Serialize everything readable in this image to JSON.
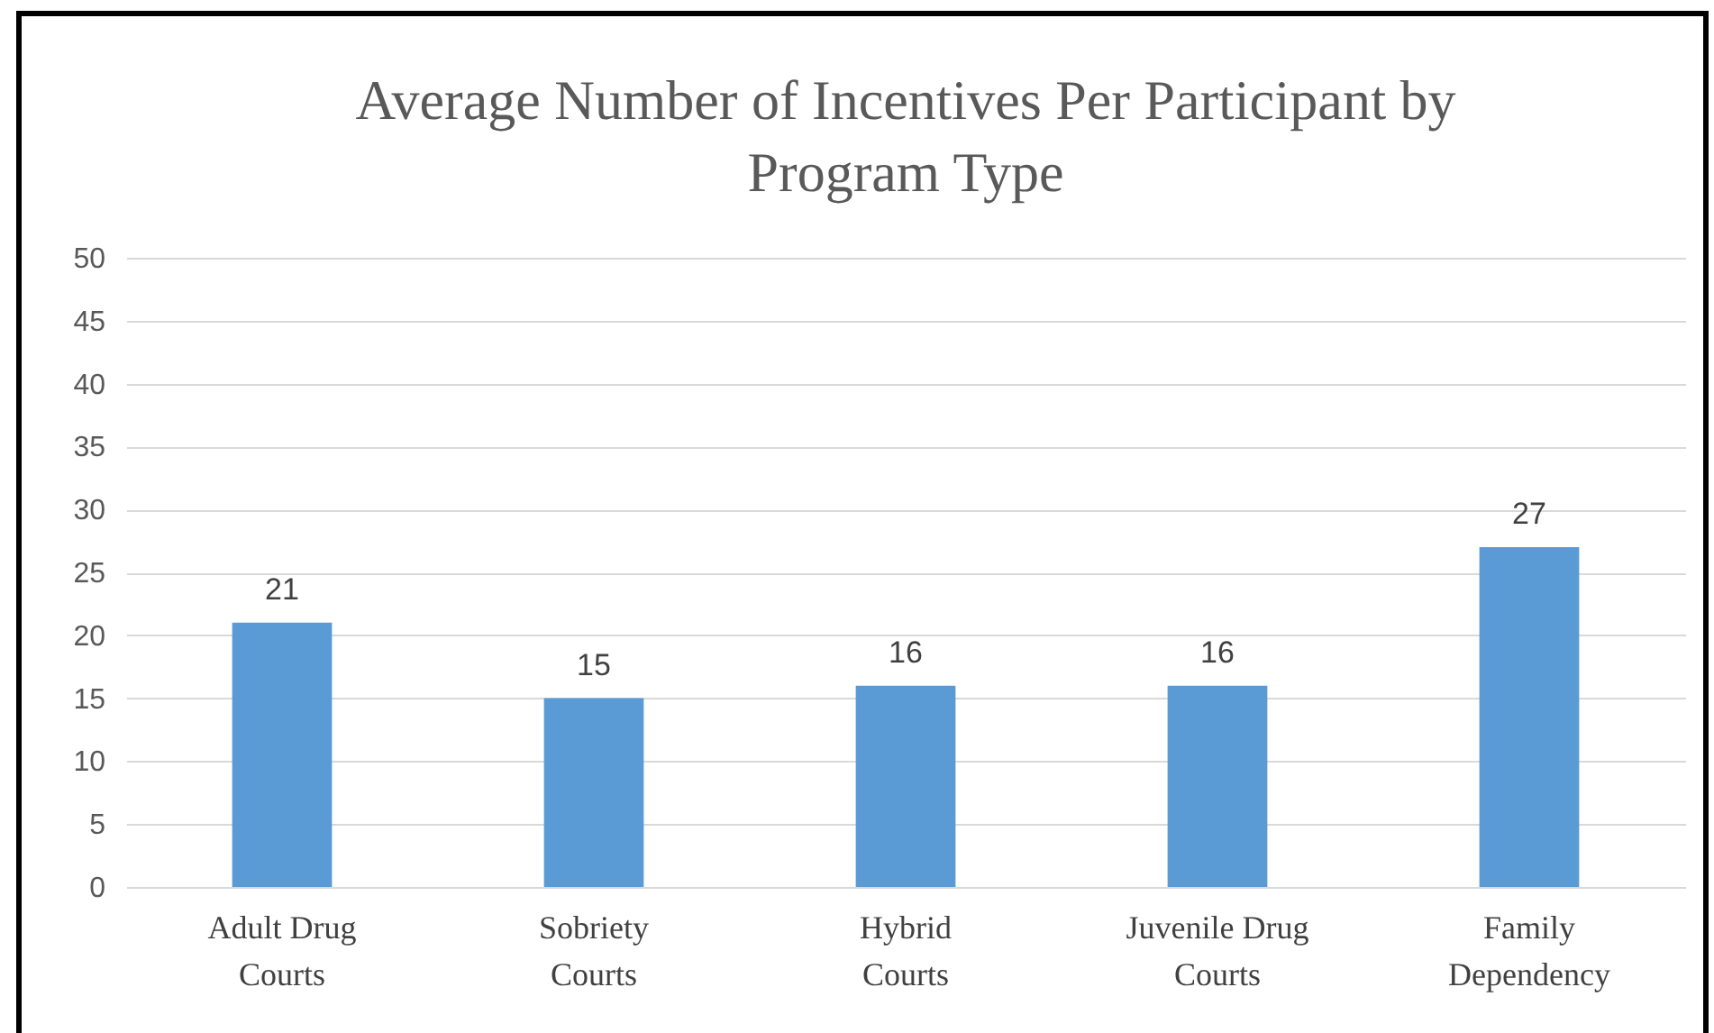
{
  "chart_data": {
    "type": "bar",
    "title": "Average Number of Incentives Per Participant by Program Type",
    "categories": [
      "Adult Drug Courts",
      "Sobriety Courts",
      "Hybrid Courts",
      "Juvenile Drug Courts",
      "Family Dependency"
    ],
    "values": [
      21,
      15,
      16,
      16,
      27
    ],
    "color": "#5b9bd5",
    "ylim": [
      0,
      50
    ],
    "yticks": [
      0,
      5,
      10,
      15,
      20,
      25,
      30,
      35,
      40,
      45,
      50
    ],
    "grid": "y",
    "data_labels": true
  }
}
